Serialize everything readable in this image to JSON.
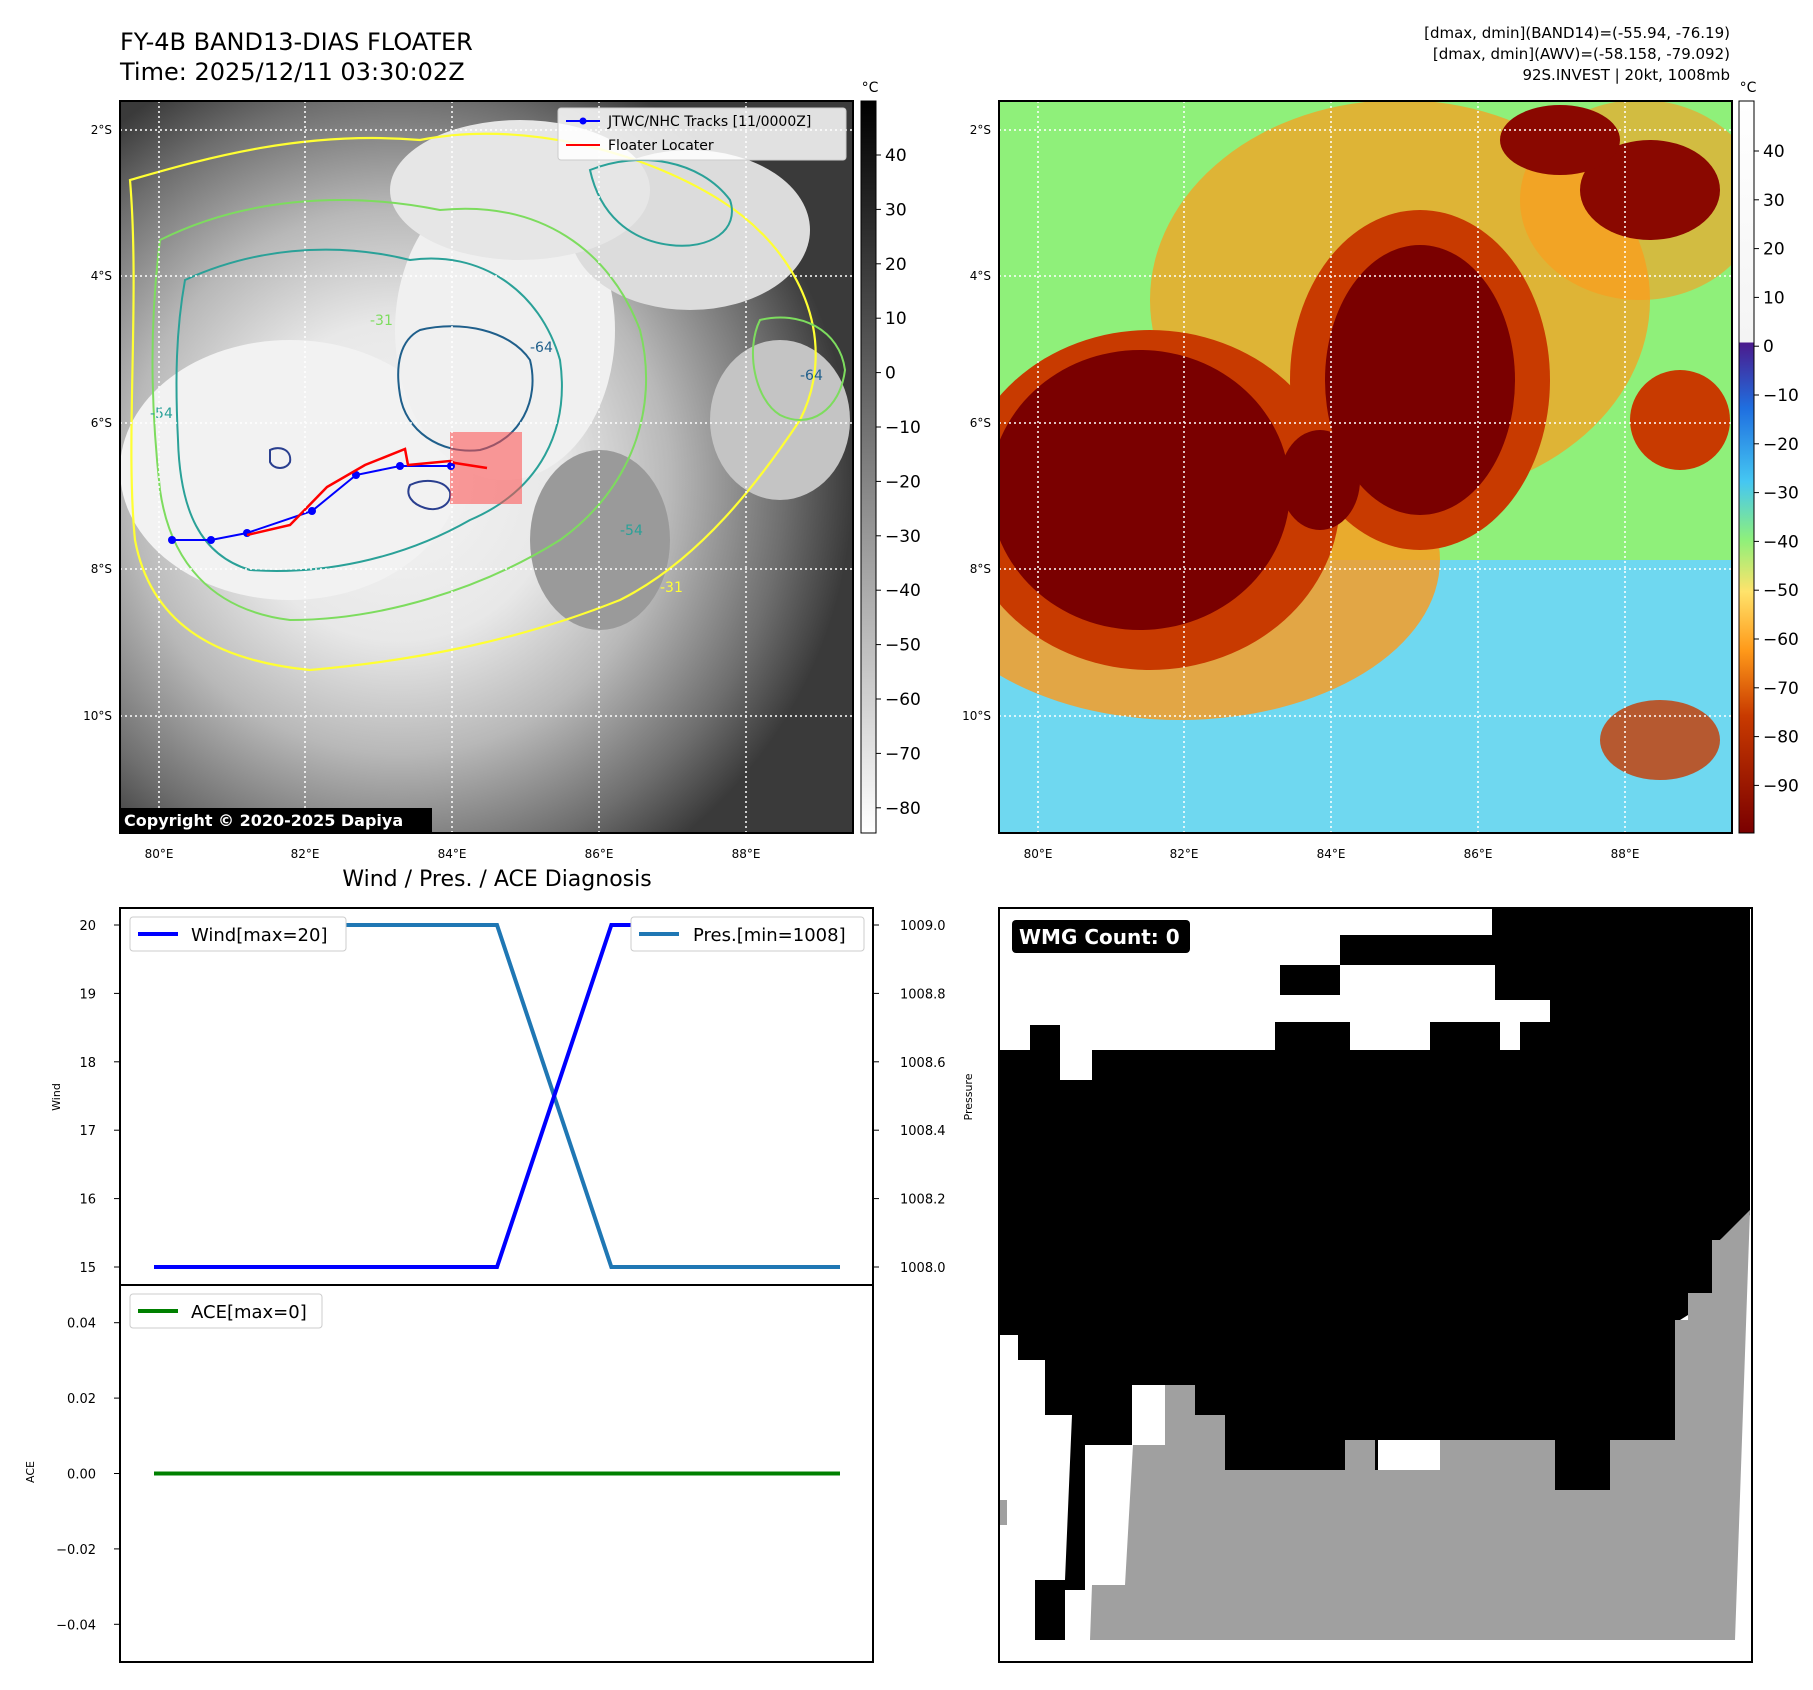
{
  "header": {
    "title_line1": "FY-4B BAND13-DIAS FLOATER",
    "title_line2": "Time: 2025/12/11 03:30:02Z",
    "right_line1": "[dmax, dmin](BAND14)=(-55.94, -76.19)",
    "right_line2": "[dmax, dmin](AWV)=(-58.158, -79.092)",
    "right_line3": "92S.INVEST | 20kt, 1008mb"
  },
  "maps": {
    "lat_labels": [
      "2°S",
      "4°S",
      "6°S",
      "8°S",
      "10°S"
    ],
    "lon_labels": [
      "80°E",
      "82°E",
      "84°E",
      "86°E",
      "88°E"
    ],
    "copyright": "Copyright © 2020-2025 Dapiya",
    "legend": {
      "tracks": "JTWC/NHC Tracks [11/0000Z]",
      "floater": "Floater Locater"
    },
    "track_color": "#0000ff",
    "floater_color": "#ff0000",
    "contour_labels": [
      "-54",
      "-64",
      "-31"
    ],
    "gray_colorbar": {
      "unit": "°C",
      "ticks": [
        "40",
        "30",
        "20",
        "10",
        "0",
        "−10",
        "−20",
        "−30",
        "−40",
        "−50",
        "−60",
        "−70",
        "−80"
      ]
    },
    "color_colorbar": {
      "unit": "°C",
      "ticks": [
        "40",
        "30",
        "20",
        "10",
        "0",
        "−10",
        "−20",
        "−30",
        "−40",
        "−50",
        "−60",
        "−70",
        "−80",
        "−90"
      ]
    }
  },
  "chart_data": [
    {
      "type": "line",
      "title": "Wind / Pres. / ACE Diagnosis",
      "x": [
        0,
        1,
        2,
        3,
        4,
        5,
        6
      ],
      "ylabel": "Wind",
      "ylim": [
        15,
        20
      ],
      "yticks": [
        "15",
        "16",
        "17",
        "18",
        "19",
        "20"
      ],
      "series": [
        {
          "name": "Wind[max=20]",
          "color": "#0000ff",
          "axis": "left",
          "values": [
            15,
            15,
            15,
            15,
            20,
            20,
            20
          ]
        }
      ],
      "y2label": "Pressure",
      "y2lim": [
        1008.0,
        1009.0
      ],
      "y2ticks": [
        "1008.0",
        "1008.2",
        "1008.4",
        "1008.6",
        "1008.8",
        "1009.0"
      ],
      "series2": [
        {
          "name": "Pres.[min=1008]",
          "color": "#1f77b4",
          "axis": "right",
          "values": [
            1009,
            1009,
            1009,
            1009,
            1008,
            1008,
            1008
          ]
        }
      ]
    },
    {
      "type": "line",
      "x": [
        0,
        1,
        2,
        3,
        4,
        5,
        6
      ],
      "ylabel": "ACE",
      "ylim": [
        -0.05,
        0.05
      ],
      "yticks": [
        "0.04",
        "0.02",
        "0.00",
        "−0.02",
        "−0.04"
      ],
      "series": [
        {
          "name": "ACE[max=0]",
          "color": "#008000",
          "values": [
            0,
            0,
            0,
            0,
            0,
            0,
            0
          ]
        }
      ]
    }
  ],
  "wmg": {
    "label": "WMG Count: 0"
  }
}
